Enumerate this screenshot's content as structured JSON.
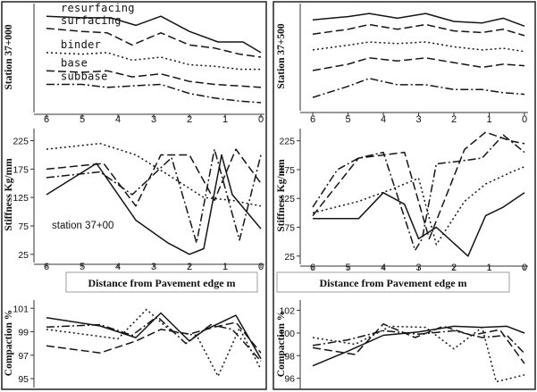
{
  "chart_data": [
    {
      "type": "line",
      "panel": "left-profile",
      "ylabel": "Station 37+000",
      "x_ticks": [
        "6",
        "5",
        "4",
        "3",
        "2",
        "1",
        "0"
      ],
      "xlim": [
        6,
        0
      ],
      "y_ticks": [],
      "series": [
        {
          "name": "resurfacing",
          "style": "solid",
          "x": [
            6,
            5,
            4.2,
            3.5,
            2.8,
            2,
            1.2,
            0.5,
            0
          ],
          "y": [
            5,
            4.9,
            4.9,
            4.4,
            5,
            4,
            3.3,
            3.3,
            2.6
          ]
        },
        {
          "name": "surfacing",
          "style": "dashed",
          "x": [
            6,
            5,
            4.3,
            3.6,
            2.8,
            2,
            1.3,
            0.6,
            0
          ],
          "y": [
            4.2,
            4,
            3.9,
            3.1,
            3.9,
            3.1,
            2.9,
            2.5,
            2.3
          ]
        },
        {
          "name": "binder",
          "style": "dotted",
          "x": [
            6,
            5,
            4.3,
            3.6,
            2.8,
            2,
            1.3,
            0.6,
            0
          ],
          "y": [
            2.6,
            2.5,
            2.6,
            2.1,
            2.3,
            1.8,
            1.7,
            1.5,
            1.5
          ]
        },
        {
          "name": "base",
          "style": "dashed",
          "x": [
            6,
            5,
            4.3,
            3.6,
            2.8,
            2,
            1.3,
            0.6,
            0
          ],
          "y": [
            1.4,
            1.3,
            1.4,
            1.0,
            1.2,
            0.7,
            0.5,
            0.4,
            0.3
          ]
        },
        {
          "name": "subbase",
          "style": "dashdot",
          "x": [
            6,
            5,
            4.3,
            3.6,
            2.8,
            2,
            1.3,
            0.6,
            0
          ],
          "y": [
            0.5,
            0.5,
            0.3,
            0.4,
            0.5,
            -0.1,
            -0.4,
            -0.6,
            -0.7
          ]
        }
      ]
    },
    {
      "type": "line",
      "panel": "right-profile",
      "ylabel": "Station 37+500",
      "x_ticks": [
        "6",
        "5",
        "4",
        "3",
        "2",
        "1",
        "0"
      ],
      "xlim": [
        6,
        0
      ],
      "y_ticks": [],
      "series": [
        {
          "style": "solid",
          "x": [
            6,
            5,
            4.4,
            3.6,
            2.8,
            2,
            1.2,
            0.6,
            0
          ],
          "y": [
            5,
            5.2,
            5.4,
            5.1,
            5.4,
            4.9,
            4.8,
            5.1,
            4.6
          ]
        },
        {
          "style": "dashed",
          "x": [
            6,
            5,
            4.4,
            3.6,
            2.8,
            2,
            1.2,
            0.6,
            0
          ],
          "y": [
            4.1,
            4.4,
            4.7,
            4.4,
            4.7,
            4.3,
            4.2,
            4.4,
            4.0
          ]
        },
        {
          "style": "dotted",
          "x": [
            6,
            5,
            4.4,
            3.6,
            2.8,
            2,
            1.2,
            0.6,
            0
          ],
          "y": [
            3.1,
            3.4,
            3.6,
            3.5,
            3.6,
            3.3,
            3.1,
            3.2,
            3.0
          ]
        },
        {
          "style": "dashed",
          "x": [
            6,
            5,
            4.4,
            3.6,
            2.8,
            2,
            1.2,
            0.6,
            0
          ],
          "y": [
            1.8,
            2.2,
            2.6,
            2.4,
            2.6,
            2.3,
            2.0,
            2.2,
            2.1
          ]
        },
        {
          "style": "dashdot",
          "x": [
            6,
            5,
            4.4,
            3.6,
            2.8,
            2,
            1.2,
            0.6,
            0
          ],
          "y": [
            0.1,
            0.8,
            1.3,
            0.9,
            0.9,
            0.6,
            0.6,
            0.4,
            0.3
          ]
        }
      ]
    },
    {
      "type": "line",
      "panel": "left-stiffness",
      "ylabel": "Stiffness Kg/mm",
      "annotation": "station 37+00",
      "x_ticks": [
        "6",
        "5",
        "4",
        "3",
        "2",
        "1",
        "0"
      ],
      "xlim": [
        6,
        0
      ],
      "y_ticks": [
        "25",
        "75",
        "125",
        "175",
        "225"
      ],
      "ylim": [
        20,
        240
      ],
      "series": [
        {
          "style": "solid",
          "x": [
            6,
            4.6,
            3.5,
            2.6,
            2,
            1.6,
            1.1,
            0.8,
            0
          ],
          "y": [
            130,
            185,
            85,
            45,
            25,
            35,
            200,
            130,
            70
          ]
        },
        {
          "style": "dashed",
          "x": [
            6,
            4.4,
            3.5,
            2.8,
            2,
            1.3,
            0.7,
            0
          ],
          "y": [
            175,
            185,
            110,
            200,
            200,
            120,
            210,
            150
          ]
        },
        {
          "style": "dashdot",
          "x": [
            6,
            4.5,
            3.6,
            2.5,
            1.8,
            1.3,
            0.6,
            0
          ],
          "y": [
            160,
            170,
            130,
            195,
            45,
            210,
            50,
            200
          ]
        },
        {
          "style": "dotted",
          "x": [
            6,
            4.5,
            3.5,
            2.6,
            1.6,
            0.8,
            0
          ],
          "y": [
            210,
            220,
            200,
            165,
            125,
            120,
            110
          ]
        }
      ]
    },
    {
      "type": "line",
      "panel": "right-stiffness",
      "ylabel": "Stiffness Kg/mm",
      "x_ticks": [
        "6",
        "5",
        "4",
        "3",
        "2",
        "1",
        "0"
      ],
      "xlim": [
        6,
        0
      ],
      "y_ticks": [
        "25",
        "75",
        "125",
        "175",
        "225"
      ],
      "ylim": [
        20,
        240
      ],
      "series": [
        {
          "style": "solid",
          "x": [
            6,
            5.3,
            4.7,
            4,
            3.4,
            3,
            2.5,
            1.6,
            1.1,
            0.6,
            0
          ],
          "y": [
            90,
            90,
            90,
            135,
            115,
            55,
            75,
            25,
            95,
            110,
            135
          ]
        },
        {
          "style": "dashed",
          "x": [
            6,
            4.7,
            3.4,
            2.7,
            1.7,
            1.1,
            0.4,
            0
          ],
          "y": [
            95,
            195,
            205,
            55,
            210,
            240,
            225,
            220
          ]
        },
        {
          "style": "dashdot",
          "x": [
            6,
            5.3,
            4.7,
            4,
            3.1,
            2.9,
            2.5,
            1.8,
            1.2,
            0.6,
            0
          ],
          "y": [
            110,
            175,
            195,
            205,
            35,
            55,
            185,
            190,
            195,
            235,
            205
          ]
        },
        {
          "style": "dotted",
          "x": [
            6,
            4.7,
            3.8,
            3,
            2.5,
            1.7,
            1.1,
            0.4,
            0
          ],
          "y": [
            100,
            120,
            140,
            160,
            45,
            120,
            150,
            170,
            180
          ]
        }
      ]
    },
    {
      "type": "line",
      "panel": "left-compaction",
      "ylabel": "Compaction %",
      "x_ticks": [],
      "xlim": [
        6,
        0
      ],
      "y_ticks": [
        "95",
        "97",
        "99",
        "101"
      ],
      "ylim": [
        94.7,
        101.4
      ],
      "series": [
        {
          "style": "solid",
          "x": [
            6,
            4.5,
            3.5,
            2.8,
            2,
            1.6,
            0.7,
            0
          ],
          "y": [
            100.2,
            99.5,
            98.5,
            100.6,
            98.2,
            99.1,
            100.4,
            96.7
          ]
        },
        {
          "style": "dashed",
          "x": [
            6,
            4.5,
            3.5,
            2.8,
            2,
            1.3,
            0.7,
            0
          ],
          "y": [
            97.8,
            97.2,
            98.2,
            99.2,
            98.8,
            99.4,
            99.8,
            97.2
          ]
        },
        {
          "style": "dashdot",
          "x": [
            6,
            4.5,
            3.6,
            2.9,
            2.1,
            1.4,
            0.8,
            0
          ],
          "y": [
            99.4,
            99.6,
            98.7,
            100.3,
            98.0,
            99.6,
            99.2,
            96.5
          ]
        },
        {
          "style": "dotted",
          "x": [
            6,
            5,
            4,
            3.2,
            2.5,
            1.8,
            1.2,
            0.6,
            0
          ],
          "y": [
            99.2,
            98.8,
            98.4,
            100.9,
            99.0,
            98.7,
            95.2,
            99.3,
            95.8
          ]
        }
      ]
    },
    {
      "type": "line",
      "panel": "right-compaction",
      "ylabel": "Compaction %",
      "x_ticks": [],
      "xlim": [
        6,
        0
      ],
      "y_ticks": [
        "96",
        "98",
        "100",
        "102"
      ],
      "ylim": [
        95.5,
        102.6
      ],
      "series": [
        {
          "style": "solid",
          "x": [
            6,
            5,
            4,
            3,
            2,
            1.2,
            0.5,
            0
          ],
          "y": [
            97.1,
            98.4,
            99.8,
            100.1,
            100.6,
            100.5,
            100.6,
            100.0
          ]
        },
        {
          "style": "dashed",
          "x": [
            6,
            4.8,
            4,
            3.1,
            2.3,
            1.5,
            0.7,
            0
          ],
          "y": [
            98.7,
            98.1,
            100.8,
            99.6,
            100.6,
            99.8,
            100.3,
            97.3
          ]
        },
        {
          "style": "dashdot",
          "x": [
            6,
            5,
            4,
            3,
            2,
            1.2,
            0.5,
            0
          ],
          "y": [
            98.9,
            99.4,
            100.2,
            99.9,
            100.2,
            99.6,
            99.8,
            98.2
          ]
        },
        {
          "style": "dotted",
          "x": [
            6,
            4.8,
            3.8,
            2.8,
            2,
            1.2,
            0.8,
            0
          ],
          "y": [
            99.6,
            99.0,
            100.6,
            100.5,
            98.6,
            100.5,
            95.7,
            96.3
          ]
        }
      ]
    }
  ],
  "footer": {
    "x_axis_title_left": "Distance from Pavement edge m",
    "x_axis_title_right": "Distance from Pavement edge m"
  },
  "colors": {
    "line": "#151515",
    "frame": "#333333",
    "background": "#ffffff"
  }
}
